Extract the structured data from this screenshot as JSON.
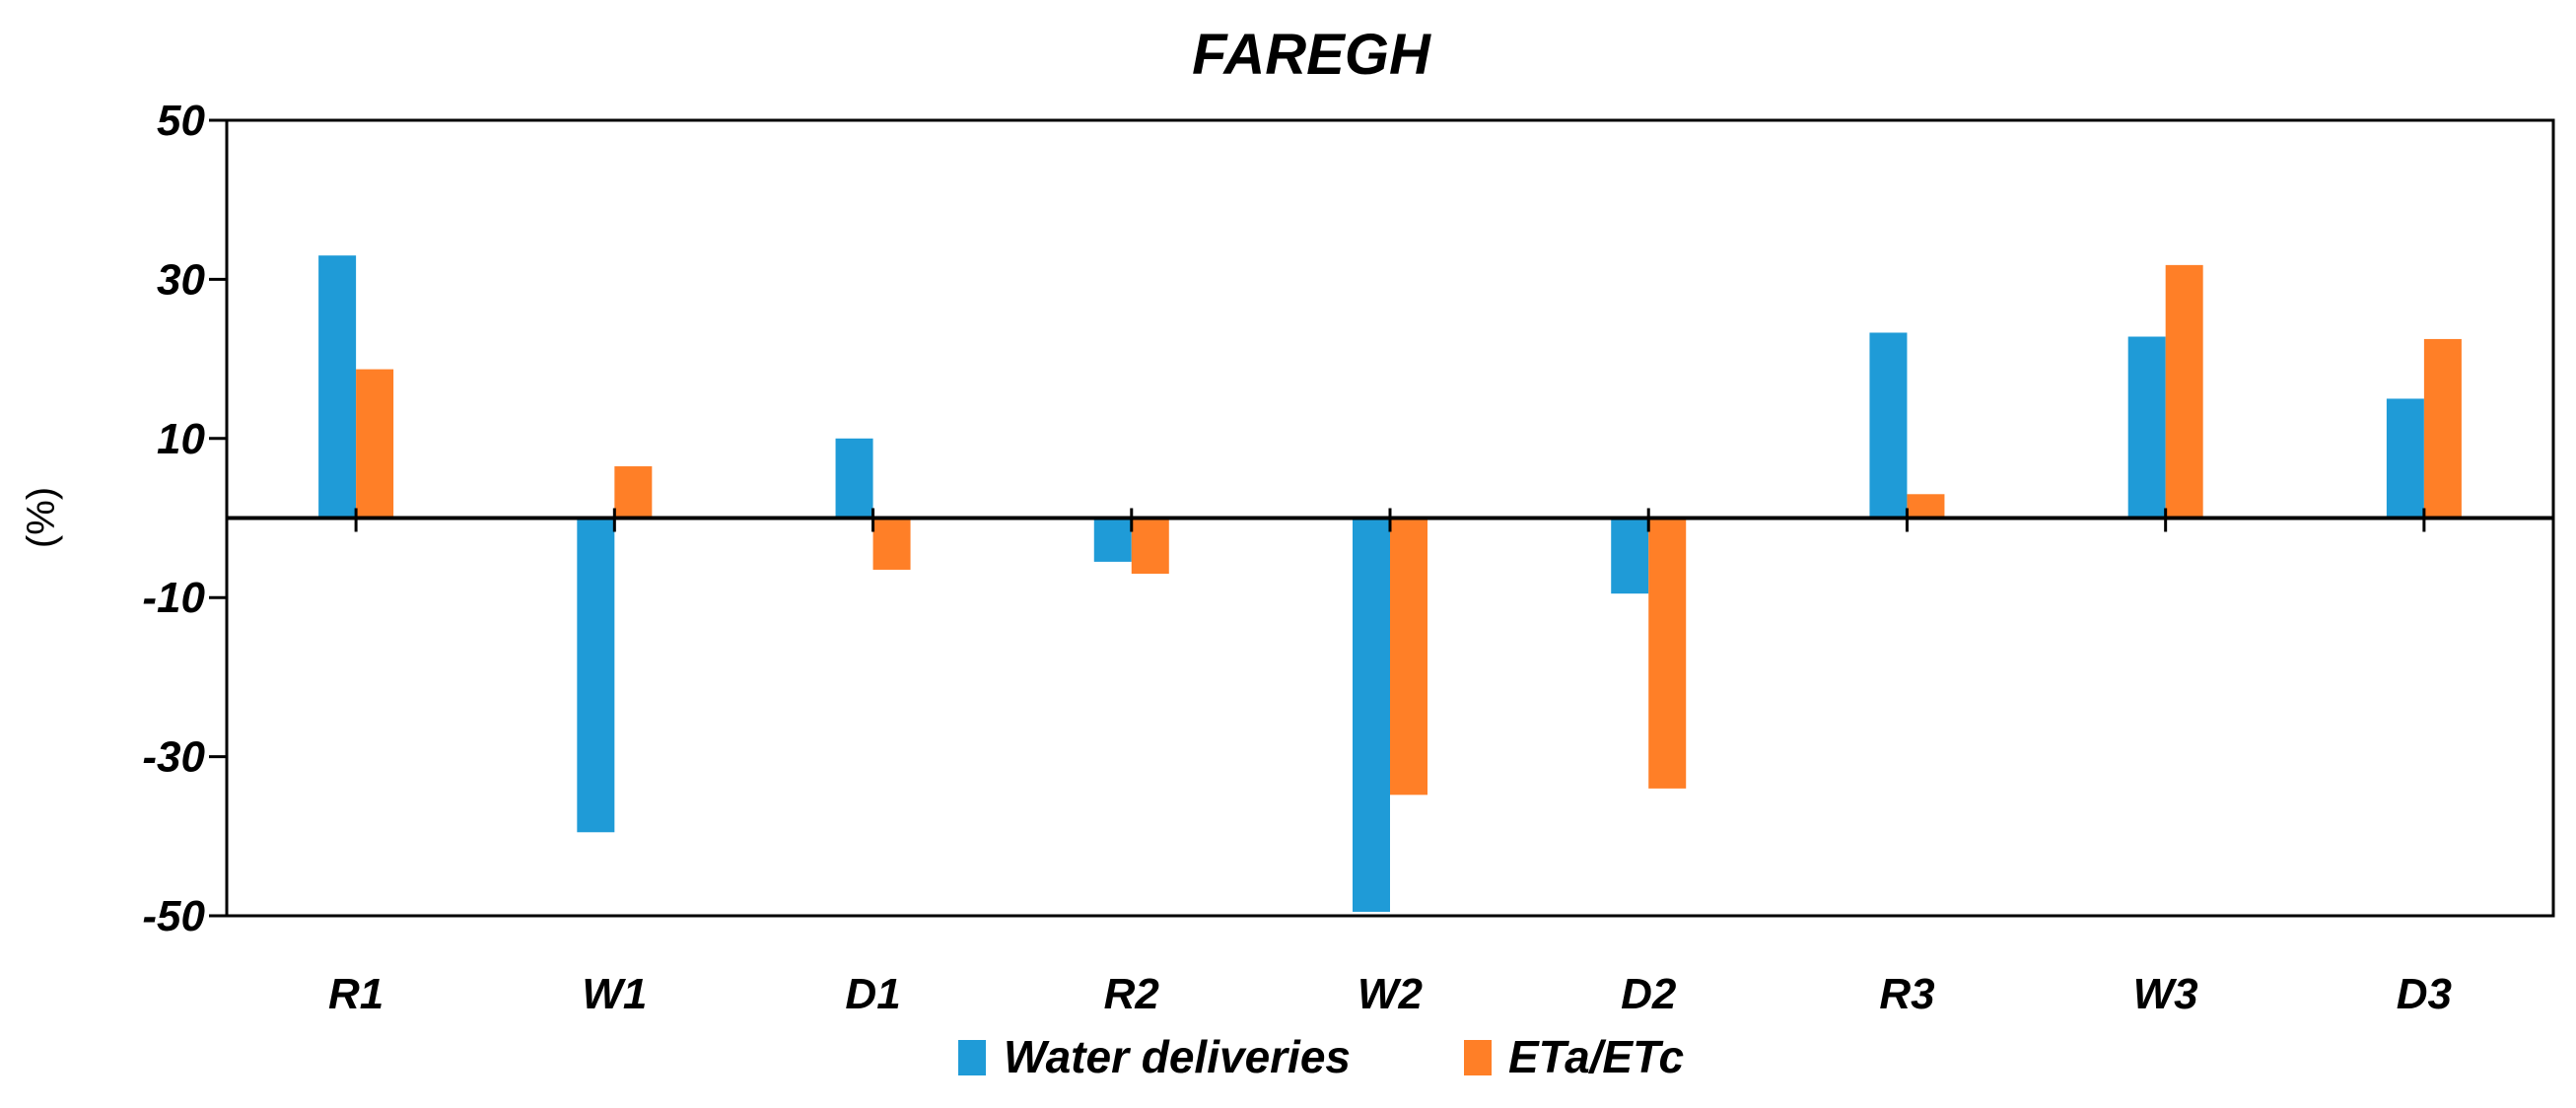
{
  "chart_data": {
    "type": "bar",
    "title": "FAREGH",
    "xlabel": "",
    "ylabel": "(%)",
    "ylim": [
      -50,
      50
    ],
    "yticks": [
      50,
      30,
      10,
      -10,
      -30,
      -50
    ],
    "categories": [
      "R1",
      "W1",
      "D1",
      "R2",
      "W2",
      "D2",
      "R3",
      "W3",
      "D3"
    ],
    "series": [
      {
        "name": "Water deliveries",
        "color": "#1F9BD7",
        "values": [
          33,
          -39.5,
          10,
          -5.5,
          -49.5,
          -9.5,
          23.3,
          22.8,
          15
        ]
      },
      {
        "name": "ETa/ETc",
        "color": "#FF7F27",
        "values": [
          18.7,
          6.5,
          -6.5,
          -7,
          -34.8,
          -34,
          3,
          31.8,
          22.5
        ]
      }
    ],
    "legend_position": "bottom-center",
    "grid": false
  }
}
